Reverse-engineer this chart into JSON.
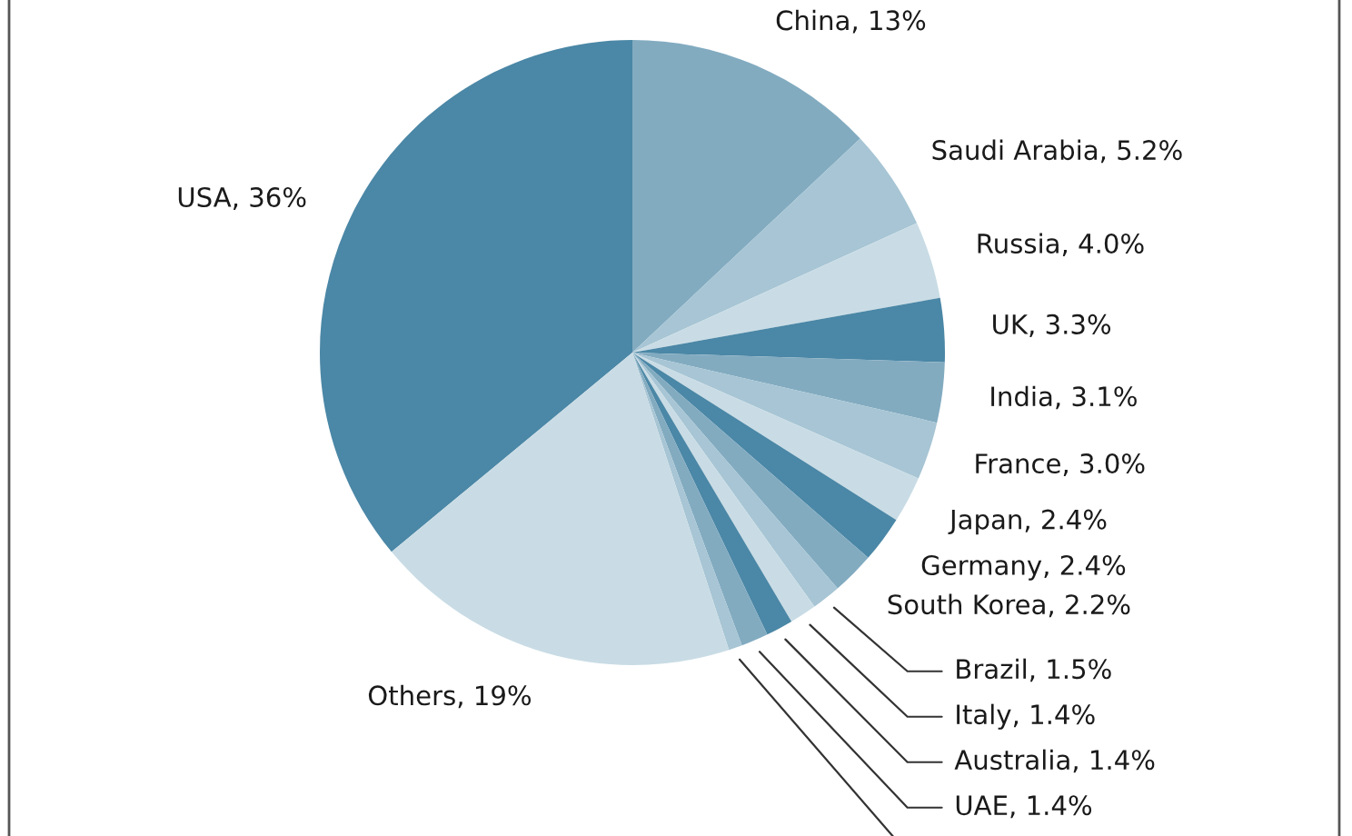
{
  "chart_data": {
    "type": "pie",
    "categories": [
      "USA",
      "China",
      "Saudi Arabia",
      "Russia",
      "UK",
      "India",
      "France",
      "Japan",
      "Germany",
      "South Korea",
      "Brazil",
      "Italy",
      "Australia",
      "UAE",
      null,
      "Others"
    ],
    "values": [
      36,
      13,
      5.2,
      4.0,
      3.3,
      3.1,
      3.0,
      2.4,
      2.4,
      2.2,
      1.5,
      1.4,
      1.4,
      1.4,
      0.7,
      19
    ],
    "value_labels": [
      "36%",
      "13%",
      "5.2%",
      "4.0%",
      "3.3%",
      "3.1%",
      "3.0%",
      "2.4%",
      "2.4%",
      "2.2%",
      "1.5%",
      "1.4%",
      "1.4%",
      "1.4%",
      null,
      "19%"
    ],
    "colors": [
      "#4b87a6",
      "#82abc0",
      "#a7c5d4",
      "#c9dce5",
      "#4b87a6",
      "#82abc0",
      "#a7c5d4",
      "#c9dce5",
      "#4b87a6",
      "#82abc0",
      "#a7c5d4",
      "#c9dce5",
      "#4b87a6",
      "#82abc0",
      "#a7c5d4",
      "#c9dce5"
    ]
  }
}
